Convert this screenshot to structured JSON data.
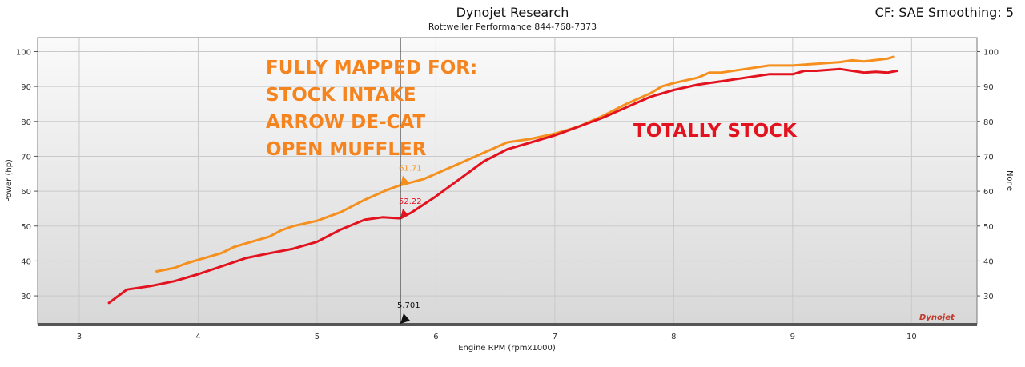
{
  "header": {
    "title": "Dynojet Research",
    "subtitle": "Rottweiler Performance 844-768-7373",
    "cf": "CF: SAE Smoothing: 5"
  },
  "logo_text": "Dynojet",
  "annotations": {
    "mapped_lines": [
      "FULLY MAPPED FOR:",
      "STOCK INTAKE",
      "ARROW DE-CAT",
      "OPEN MUFFLER"
    ],
    "stock": "TOTALLY STOCK"
  },
  "cursor": {
    "x": 5.701,
    "x_label": "5.701",
    "orange_value_label": "61.71",
    "red_value_label": "52.22"
  },
  "colors": {
    "orange": "#f5901e",
    "red": "#e3121f",
    "grid": "#c9c9c9",
    "plot_top": "#fafafa",
    "plot_bottom": "#d8d8d8"
  },
  "chart_data": {
    "type": "line",
    "title": "Dynojet Research",
    "subtitle": "Rottweiler Performance 844-768-7373",
    "xlabel": "Engine RPM (rpmx1000)",
    "ylabel": "Power (hp)",
    "y2label": "None",
    "xlim": [
      2.65,
      10.55
    ],
    "ylim": [
      22,
      104
    ],
    "xticks": [
      3,
      4,
      5,
      6,
      7,
      8,
      9,
      10
    ],
    "yticks": [
      30,
      40,
      50,
      60,
      70,
      80,
      90,
      100
    ],
    "grid": true,
    "series": [
      {
        "color": "#f5901e",
        "x": [
          3.65,
          3.8,
          3.9,
          4.0,
          4.2,
          4.3,
          4.4,
          4.6,
          4.7,
          4.8,
          5.0,
          5.2,
          5.4,
          5.6,
          5.701,
          5.9,
          6.0,
          6.2,
          6.4,
          6.6,
          6.8,
          7.0,
          7.2,
          7.4,
          7.6,
          7.8,
          7.9,
          8.0,
          8.2,
          8.3,
          8.4,
          8.6,
          8.8,
          9.0,
          9.2,
          9.4,
          9.5,
          9.6,
          9.8,
          9.85
        ],
        "y": [
          37.0,
          38.0,
          39.3,
          40.3,
          42.3,
          44.0,
          45.0,
          47.0,
          48.8,
          50.0,
          51.5,
          54.0,
          57.5,
          60.5,
          61.71,
          63.5,
          65.0,
          68.0,
          71.0,
          74.0,
          75.0,
          76.5,
          78.5,
          81.5,
          85.0,
          88.0,
          90.0,
          91.0,
          92.5,
          94.0,
          94.0,
          95.0,
          96.0,
          96.0,
          96.5,
          97.0,
          97.5,
          97.2,
          98.0,
          98.5
        ]
      },
      {
        "color": "#e3121f",
        "x": [
          3.25,
          3.4,
          3.6,
          3.8,
          4.0,
          4.2,
          4.4,
          4.6,
          4.8,
          5.0,
          5.2,
          5.4,
          5.55,
          5.701,
          5.8,
          6.0,
          6.2,
          6.4,
          6.6,
          6.8,
          7.0,
          7.2,
          7.4,
          7.6,
          7.8,
          8.0,
          8.2,
          8.4,
          8.6,
          8.8,
          9.0,
          9.1,
          9.2,
          9.4,
          9.5,
          9.6,
          9.7,
          9.8,
          9.88
        ],
        "y": [
          28.0,
          31.8,
          32.8,
          34.2,
          36.2,
          38.5,
          40.8,
          42.2,
          43.5,
          45.5,
          49.0,
          51.8,
          52.5,
          52.22,
          54.0,
          58.5,
          63.5,
          68.5,
          72.0,
          74.0,
          76.0,
          78.5,
          81.0,
          84.0,
          87.0,
          89.0,
          90.5,
          91.5,
          92.5,
          93.5,
          93.5,
          94.5,
          94.5,
          95.0,
          94.5,
          94.0,
          94.2,
          94.0,
          94.5
        ]
      }
    ]
  }
}
